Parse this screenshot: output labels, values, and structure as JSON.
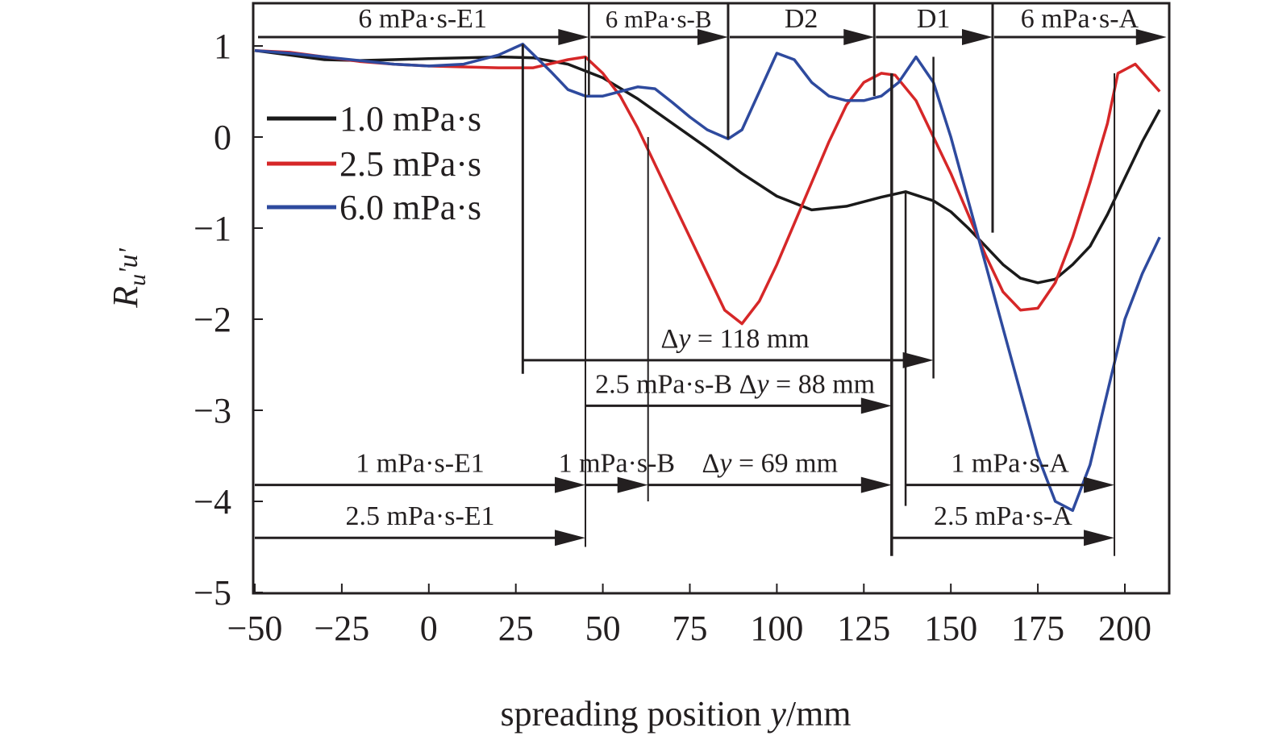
{
  "chart_data": {
    "type": "line",
    "title": "",
    "xlabel": "spreading position y/mm",
    "xlabel_parts": [
      "spreading position ",
      "y",
      "/mm"
    ],
    "ylabel": "R_u'u'",
    "ylabel_parts": {
      "main": "R",
      "sub": "u",
      "prime_sub": "'u'"
    },
    "xlim": [
      -50,
      212
    ],
    "ylim": [
      -5,
      1.45
    ],
    "xticks": [
      -50,
      -25,
      0,
      25,
      50,
      75,
      100,
      125,
      150,
      175,
      200
    ],
    "xtick_labels": [
      "−50",
      "−25",
      "0",
      "25",
      "50",
      "75",
      "100",
      "125",
      "150",
      "175",
      "200"
    ],
    "yticks": [
      1,
      0,
      -1,
      -2,
      -3,
      -4,
      -5
    ],
    "ytick_labels": [
      "1",
      "0",
      "−1",
      "−2",
      "−3",
      "−4",
      "−5"
    ],
    "grid": false,
    "legend_position": "upper-left",
    "series": [
      {
        "name": "1.0 mPa·s",
        "color": "#1a1a1a",
        "x": [
          -50,
          -40,
          -30,
          -20,
          -10,
          0,
          10,
          20,
          30,
          40,
          50,
          60,
          70,
          80,
          90,
          100,
          110,
          120,
          130,
          137,
          145,
          150,
          155,
          160,
          165,
          170,
          175,
          180,
          185,
          190,
          195,
          200,
          205,
          210
        ],
        "y": [
          0.95,
          0.9,
          0.85,
          0.84,
          0.85,
          0.86,
          0.87,
          0.88,
          0.87,
          0.8,
          0.65,
          0.42,
          0.15,
          -0.12,
          -0.4,
          -0.65,
          -0.8,
          -0.76,
          -0.66,
          -0.6,
          -0.7,
          -0.82,
          -1.0,
          -1.2,
          -1.4,
          -1.55,
          -1.6,
          -1.56,
          -1.4,
          -1.2,
          -0.85,
          -0.45,
          -0.05,
          0.3
        ]
      },
      {
        "name": "2.5 mPa·s",
        "color": "#d62728",
        "x": [
          -50,
          -40,
          -30,
          -20,
          -10,
          0,
          10,
          20,
          30,
          40,
          45,
          50,
          55,
          60,
          65,
          70,
          75,
          80,
          85,
          90,
          95,
          100,
          105,
          110,
          115,
          120,
          125,
          130,
          134,
          140,
          145,
          150,
          155,
          160,
          165,
          170,
          175,
          180,
          185,
          190,
          195,
          198,
          203,
          210
        ],
        "y": [
          0.95,
          0.93,
          0.88,
          0.83,
          0.8,
          0.78,
          0.77,
          0.76,
          0.76,
          0.85,
          0.88,
          0.7,
          0.45,
          0.1,
          -0.3,
          -0.7,
          -1.1,
          -1.5,
          -1.9,
          -2.05,
          -1.8,
          -1.4,
          -0.95,
          -0.5,
          -0.05,
          0.35,
          0.6,
          0.7,
          0.68,
          0.4,
          0.0,
          -0.4,
          -0.85,
          -1.3,
          -1.7,
          -1.9,
          -1.88,
          -1.6,
          -1.1,
          -0.5,
          0.15,
          0.7,
          0.8,
          0.5
        ]
      },
      {
        "name": "6.0 mPa·s",
        "color": "#2e4a9e",
        "x": [
          -50,
          -40,
          -30,
          -20,
          -10,
          0,
          10,
          20,
          27,
          35,
          40,
          45,
          50,
          55,
          60,
          65,
          70,
          75,
          80,
          86,
          90,
          95,
          100,
          105,
          110,
          115,
          120,
          125,
          130,
          135,
          140,
          145,
          150,
          155,
          160,
          165,
          170,
          175,
          180,
          185,
          190,
          195,
          200,
          205,
          210
        ],
        "y": [
          0.95,
          0.92,
          0.88,
          0.84,
          0.8,
          0.78,
          0.8,
          0.9,
          1.02,
          0.72,
          0.52,
          0.45,
          0.45,
          0.5,
          0.55,
          0.53,
          0.38,
          0.22,
          0.08,
          -0.02,
          0.08,
          0.5,
          0.92,
          0.85,
          0.6,
          0.45,
          0.4,
          0.4,
          0.45,
          0.6,
          0.88,
          0.6,
          0.0,
          -0.7,
          -1.4,
          -2.1,
          -2.8,
          -3.5,
          -4.0,
          -4.1,
          -3.6,
          -2.8,
          -2.0,
          -1.5,
          -1.1
        ]
      }
    ],
    "annotations": {
      "top_segments": [
        {
          "label": "6 mPa·s-E1",
          "x_start": -50,
          "x_end": 46
        },
        {
          "label": "6 mPa·s-B",
          "x_start": 46,
          "x_end": 86
        },
        {
          "label": "D2",
          "x_start": 86,
          "x_end": 128
        },
        {
          "label": "D1",
          "x_start": 128,
          "x_end": 162
        },
        {
          "label": "6 mPa·s-A",
          "x_start": 162,
          "x_end": 212
        }
      ],
      "interval_arrows": [
        {
          "label": "Δy = 118 mm",
          "label_parts": [
            "Δ",
            "y",
            " = 118 mm"
          ],
          "x_start": 27,
          "x_end": 145,
          "y": -2.45
        },
        {
          "label": "2.5 mPa·s-B Δy = 88 mm",
          "label_parts": [
            "2.5 mPa·s-B Δ",
            "y",
            " = 88 mm"
          ],
          "x_start": 45,
          "x_end": 133,
          "y": -2.95
        },
        {
          "label": "1 mPa·s-E1",
          "x_start": -50,
          "x_end": 45,
          "y": -3.82
        },
        {
          "label": "1 mPa·s-B",
          "x_start": 45,
          "x_end": 63,
          "y": -3.82
        },
        {
          "label": "Δy = 69 mm",
          "label_parts": [
            "Δ",
            "y",
            " = 69 mm"
          ],
          "x_start": 63,
          "x_end": 133,
          "y": -3.82
        },
        {
          "label": "1 mPa·s-A",
          "x_start": 137,
          "x_end": 197,
          "y": -3.82
        },
        {
          "label": "2.5 mPa·s-E1",
          "x_start": -50,
          "x_end": 45,
          "y": -4.4
        },
        {
          "label": "2.5 mPa·s-A",
          "x_start": 133,
          "x_end": 197,
          "y": -4.4
        }
      ]
    }
  }
}
